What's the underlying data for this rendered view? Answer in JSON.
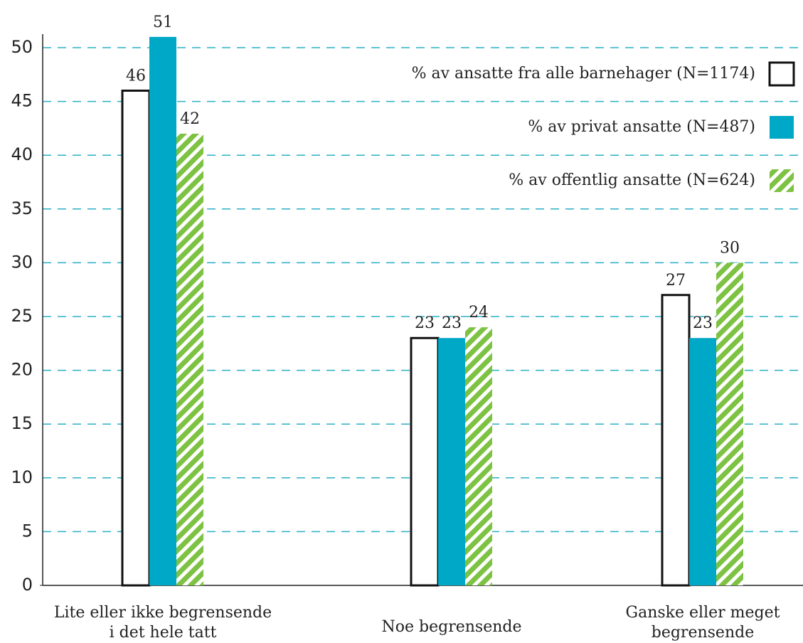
{
  "chart_data": {
    "type": "bar",
    "categories": [
      [
        "Lite eller ikke begrensende",
        "i det hele tatt"
      ],
      [
        "Noe begrensende"
      ],
      [
        "Ganske eller meget",
        "begrensende"
      ]
    ],
    "series": [
      {
        "name": "% av ansatte fra alle barnehager (N=1174)",
        "color": "#ffffff",
        "values": [
          46,
          23,
          27
        ]
      },
      {
        "name": "% av privat ansatte (N=487)",
        "color": "#00a8c8",
        "values": [
          51,
          23,
          23
        ]
      },
      {
        "name": "% av offentlig ansatte (N=624)",
        "color": "#7dc242",
        "values": [
          42,
          24,
          30
        ]
      }
    ],
    "ylim": [
      0,
      50
    ],
    "yticks": [
      0,
      5,
      10,
      15,
      20,
      25,
      30,
      35,
      40,
      45,
      50
    ],
    "grid": true,
    "legend": "upper right"
  }
}
